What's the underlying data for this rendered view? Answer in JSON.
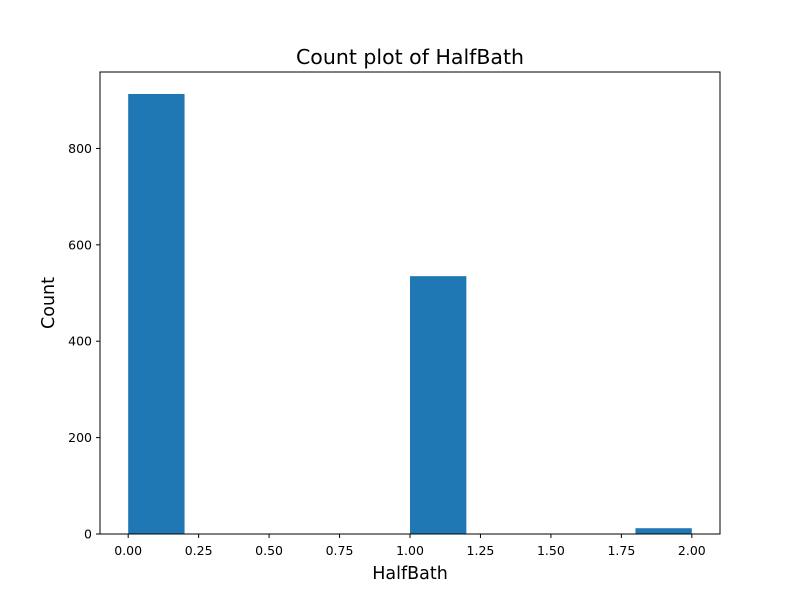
{
  "chart_data": {
    "type": "bar",
    "title": "Count plot of HalfBath",
    "xlabel": "HalfBath",
    "ylabel": "Count",
    "bar_color": "#1f77b4",
    "bins": [
      {
        "x0": 0.0,
        "x1": 0.2,
        "count": 913
      },
      {
        "x0": 0.2,
        "x1": 0.4,
        "count": 0
      },
      {
        "x0": 0.4,
        "x1": 0.6,
        "count": 0
      },
      {
        "x0": 0.6,
        "x1": 0.8,
        "count": 0
      },
      {
        "x0": 0.8,
        "x1": 1.0,
        "count": 0
      },
      {
        "x0": 1.0,
        "x1": 1.2,
        "count": 535
      },
      {
        "x0": 1.2,
        "x1": 1.4,
        "count": 0
      },
      {
        "x0": 1.4,
        "x1": 1.6,
        "count": 0
      },
      {
        "x0": 1.6,
        "x1": 1.8,
        "count": 0
      },
      {
        "x0": 1.8,
        "x1": 2.0,
        "count": 12
      }
    ],
    "xlim": [
      -0.1,
      2.1
    ],
    "ylim": [
      0,
      958.65
    ],
    "xticks": [
      0.0,
      0.25,
      0.5,
      0.75,
      1.0,
      1.25,
      1.5,
      1.75,
      2.0
    ],
    "xtick_labels": [
      "0.00",
      "0.25",
      "0.50",
      "0.75",
      "1.00",
      "1.25",
      "1.50",
      "1.75",
      "2.00"
    ],
    "yticks": [
      0,
      200,
      400,
      600,
      800
    ],
    "ytick_labels": [
      "0",
      "200",
      "400",
      "600",
      "800"
    ],
    "grid": false,
    "legend": "none"
  }
}
